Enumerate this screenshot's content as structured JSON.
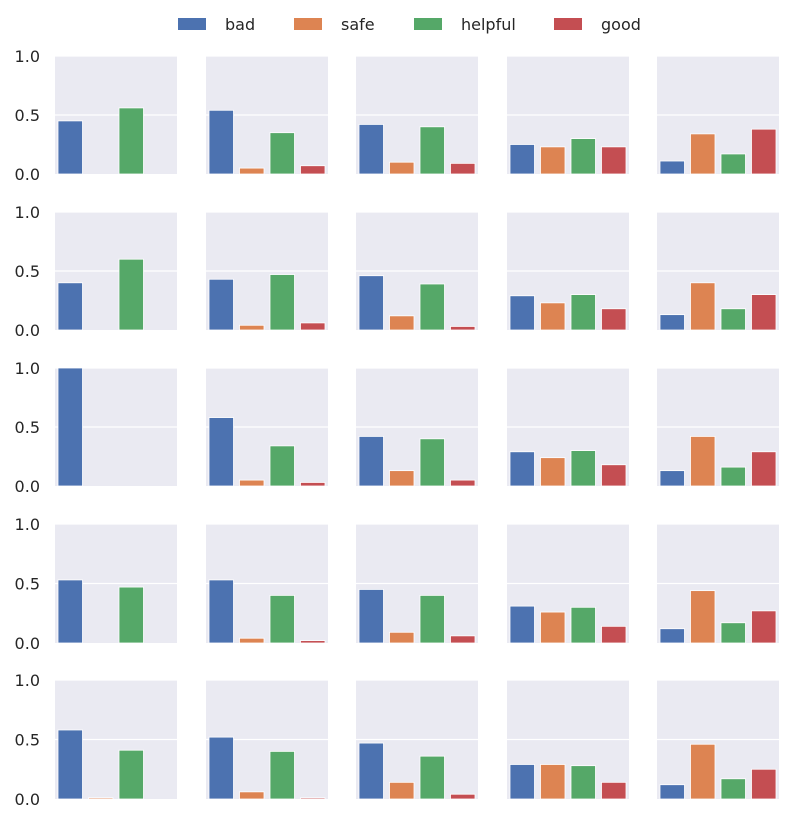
{
  "chart_data": {
    "type": "bar",
    "layout": "5x5 small-multiples grid",
    "categories": [
      "bad",
      "safe",
      "helpful",
      "good"
    ],
    "colors": {
      "bad": "#4c72b0",
      "safe": "#dd8452",
      "helpful": "#55a868",
      "good": "#c44e52"
    },
    "panel_background": "#eaeaf2",
    "grid": true,
    "ylim": [
      0,
      1.0
    ],
    "yticks": [
      "0.0",
      "0.5",
      "1.0"
    ],
    "legend": {
      "placement": "top-center",
      "entries": [
        "bad",
        "safe",
        "helpful",
        "good"
      ]
    },
    "panels": [
      [
        [
          0.45,
          0.0,
          0.56,
          0.0
        ],
        [
          0.54,
          0.05,
          0.35,
          0.07
        ],
        [
          0.42,
          0.1,
          0.4,
          0.09
        ],
        [
          0.25,
          0.23,
          0.3,
          0.23
        ],
        [
          0.11,
          0.34,
          0.17,
          0.38
        ]
      ],
      [
        [
          0.4,
          0.0,
          0.6,
          0.0
        ],
        [
          0.43,
          0.04,
          0.47,
          0.06
        ],
        [
          0.46,
          0.12,
          0.39,
          0.03
        ],
        [
          0.29,
          0.23,
          0.3,
          0.18
        ],
        [
          0.13,
          0.4,
          0.18,
          0.3
        ]
      ],
      [
        [
          1.0,
          0.0,
          0.0,
          0.0
        ],
        [
          0.58,
          0.05,
          0.34,
          0.03
        ],
        [
          0.42,
          0.13,
          0.4,
          0.05
        ],
        [
          0.29,
          0.24,
          0.3,
          0.18
        ],
        [
          0.13,
          0.42,
          0.16,
          0.29
        ]
      ],
      [
        [
          0.53,
          0.0,
          0.47,
          0.0
        ],
        [
          0.53,
          0.04,
          0.4,
          0.02
        ],
        [
          0.45,
          0.09,
          0.4,
          0.06
        ],
        [
          0.31,
          0.26,
          0.3,
          0.14
        ],
        [
          0.12,
          0.44,
          0.17,
          0.27
        ]
      ],
      [
        [
          0.58,
          0.01,
          0.41,
          0.0
        ],
        [
          0.52,
          0.06,
          0.4,
          0.01
        ],
        [
          0.47,
          0.14,
          0.36,
          0.04
        ],
        [
          0.29,
          0.29,
          0.28,
          0.14
        ],
        [
          0.12,
          0.46,
          0.17,
          0.25
        ]
      ]
    ]
  }
}
